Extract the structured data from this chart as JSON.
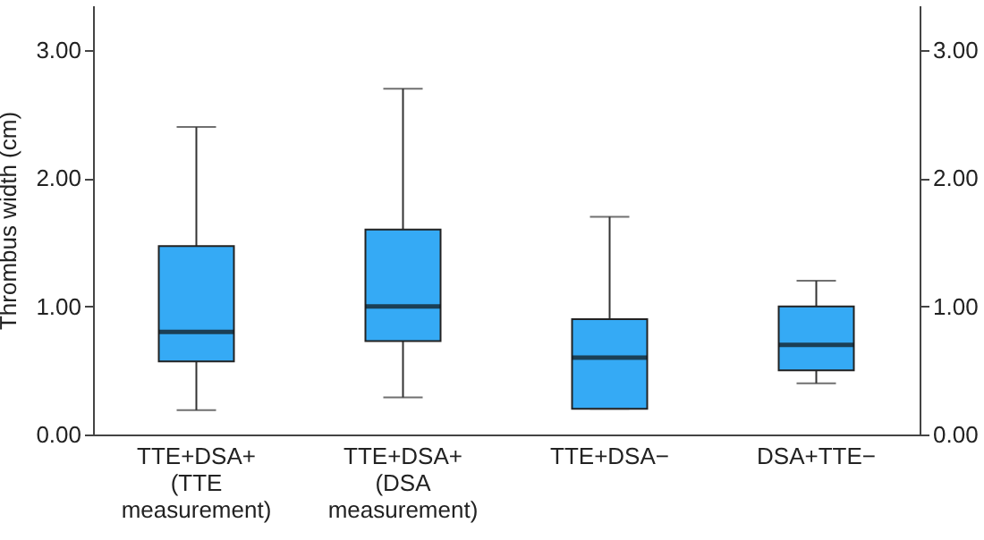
{
  "chart_data": {
    "type": "box",
    "ylabel": "Thrombus width (cm)",
    "categories": [
      "TTE+DSA+\n(TTE\nmeasurement)",
      "TTE+DSA+\n(DSA\nmeasurement)",
      "TTE+DSA−",
      "DSA+TTE−"
    ],
    "series": [
      {
        "color": "#35aaf5",
        "boxes": [
          {
            "low": 0.19,
            "q1": 0.57,
            "median": 0.8,
            "q3": 1.47,
            "high": 2.4
          },
          {
            "low": 0.29,
            "q1": 0.73,
            "median": 1.0,
            "q3": 1.6,
            "high": 2.7
          },
          {
            "low": 0.2,
            "q1": 0.2,
            "median": 0.6,
            "q3": 0.9,
            "high": 1.7
          },
          {
            "low": 0.4,
            "q1": 0.5,
            "median": 0.7,
            "q3": 1.0,
            "high": 1.2
          }
        ]
      }
    ],
    "ylim": [
      0,
      3.35
    ],
    "yticks": [
      {
        "value": 0,
        "label": "0.00"
      },
      {
        "value": 1,
        "label": "1.00"
      },
      {
        "value": 2,
        "label": "2.00"
      },
      {
        "value": 3,
        "label": "3.00"
      }
    ],
    "y2lim": [
      0,
      3.35
    ],
    "y2ticks": [
      {
        "value": 0,
        "label": "0.00"
      },
      {
        "value": 1,
        "label": "1.00"
      },
      {
        "value": 2,
        "label": "2.00"
      },
      {
        "value": 3,
        "label": "3.00"
      }
    ],
    "grid": false
  }
}
